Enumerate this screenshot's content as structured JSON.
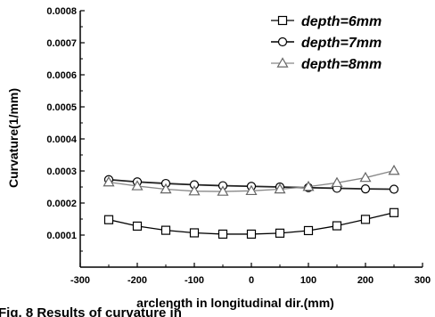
{
  "chart_data": {
    "type": "line",
    "title": "",
    "xlabel": "arclength in longitudinal dir.(mm)",
    "ylabel": "Curvature(1/mm)",
    "xlim": [
      -300,
      300
    ],
    "ylim": [
      0,
      0.0008
    ],
    "x_ticks": [
      -300,
      -200,
      -100,
      0,
      100,
      200,
      300
    ],
    "x_tick_labels": [
      "-300",
      "-200",
      "-100",
      "0",
      "100",
      "200",
      "300"
    ],
    "y_ticks": [
      0.0001,
      0.0002,
      0.0003,
      0.0004,
      0.0005,
      0.0006,
      0.0007,
      0.0008
    ],
    "y_tick_labels": [
      "0.0001",
      "0.0002",
      "0.0003",
      "0.0004",
      "0.0005",
      "0.0006",
      "0.0007",
      "0.0008"
    ],
    "grid": false,
    "legend_position": "top-right",
    "x": [
      -250,
      -200,
      -150,
      -100,
      -50,
      0,
      50,
      100,
      150,
      200,
      250
    ],
    "series": [
      {
        "name": "depth=6mm",
        "marker": "square",
        "values": [
          0.000148,
          0.000128,
          0.000115,
          0.000107,
          0.000103,
          0.000103,
          0.000106,
          0.000114,
          0.000129,
          0.000149,
          0.00017
        ]
      },
      {
        "name": "depth=7mm",
        "marker": "circle",
        "values": [
          0.000273,
          0.000266,
          0.000261,
          0.000257,
          0.000254,
          0.000252,
          0.00025,
          0.000248,
          0.000246,
          0.000244,
          0.000243
        ]
      },
      {
        "name": "depth=8mm",
        "marker": "triangle",
        "values": [
          0.000265,
          0.000253,
          0.000243,
          0.000237,
          0.000236,
          0.000238,
          0.000243,
          0.000251,
          0.000263,
          0.000279,
          0.000301
        ]
      }
    ]
  },
  "caption_fragment": "Fig. 8 Results of curvature in"
}
